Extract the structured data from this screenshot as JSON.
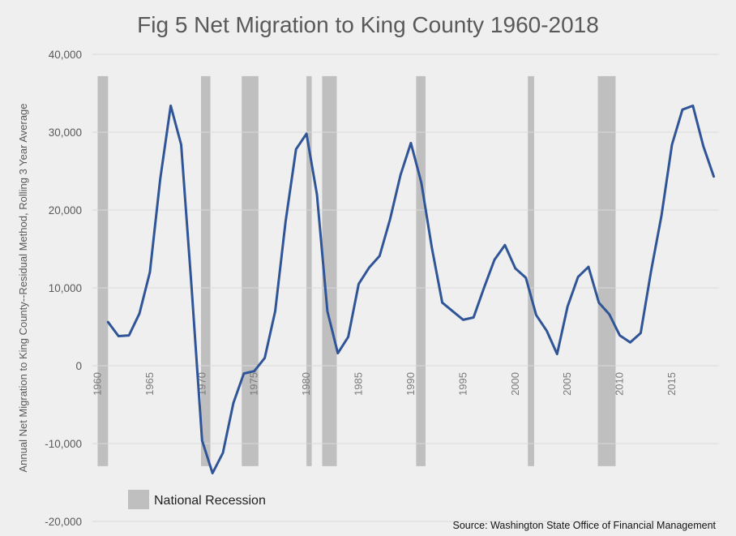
{
  "chart_data": {
    "type": "line",
    "title": "Fig 5 Net Migration to King County 1960-2018",
    "ylabel": "Annual Net Migration to King County--Residual Method, Rolling 3 Year Average",
    "xlabel": "",
    "ylim": [
      -20000,
      40000
    ],
    "xlim": [
      1959.5,
      2019.5
    ],
    "yticks": [
      -20000,
      -10000,
      0,
      10000,
      20000,
      30000,
      40000
    ],
    "ytick_labels": [
      "-20,000",
      "-10,000",
      "0",
      "10,000",
      "20,000",
      "30,000",
      "40,000"
    ],
    "xticks": [
      1960,
      1965,
      1970,
      1975,
      1980,
      1985,
      1990,
      1995,
      2000,
      2005,
      2010,
      2015
    ],
    "xtick_labels": [
      "1960",
      "1965",
      "1970",
      "1975",
      "1980",
      "1985",
      "1990",
      "1995",
      "2000",
      "2005",
      "2010",
      "2015"
    ],
    "grid": true,
    "series": [
      {
        "name": "",
        "color": "#2f5597",
        "x": [
          1961,
          1962,
          1963,
          1964,
          1965,
          1966,
          1967,
          1968,
          1969,
          1970,
          1971,
          1972,
          1973,
          1974,
          1975,
          1976,
          1977,
          1978,
          1979,
          1980,
          1981,
          1982,
          1983,
          1984,
          1985,
          1986,
          1987,
          1988,
          1989,
          1990,
          1991,
          1992,
          1993,
          1994,
          1995,
          1996,
          1997,
          1998,
          1999,
          2000,
          2001,
          2002,
          2003,
          2004,
          2005,
          2006,
          2007,
          2008,
          2009,
          2010,
          2011,
          2012,
          2013,
          2014,
          2015,
          2016,
          2017,
          2018,
          2019
        ],
        "values": [
          5600,
          3800,
          3900,
          6700,
          12000,
          24000,
          33400,
          28400,
          10000,
          -9600,
          -13800,
          -11200,
          -4800,
          -1000,
          -700,
          1000,
          7000,
          18500,
          27800,
          29800,
          22000,
          7000,
          1600,
          3700,
          10500,
          12600,
          14100,
          18800,
          24500,
          28600,
          23500,
          15200,
          8100,
          7000,
          5900,
          6200,
          10000,
          13600,
          15500,
          12500,
          11300,
          6500,
          4500,
          1500,
          7600,
          11400,
          12700,
          8100,
          6600,
          3900,
          3000,
          4200,
          12200,
          19300,
          28400,
          32900,
          33400,
          28200,
          24300
        ]
      }
    ],
    "recessions": [
      {
        "start": 1960,
        "end": 1961
      },
      {
        "start": 1969.9,
        "end": 1970.8
      },
      {
        "start": 1973.8,
        "end": 1975.4
      },
      {
        "start": 1980.0,
        "end": 1980.5
      },
      {
        "start": 1981.5,
        "end": 1982.9
      },
      {
        "start": 1990.5,
        "end": 1991.4
      },
      {
        "start": 2001.2,
        "end": 2001.8
      },
      {
        "start": 2007.9,
        "end": 2009.6
      }
    ],
    "recession_color": "#bfbfbf",
    "legend": {
      "label": "National Recession",
      "position": "bottom-left"
    },
    "source": "Source: Washington State Office of Financial Management"
  }
}
